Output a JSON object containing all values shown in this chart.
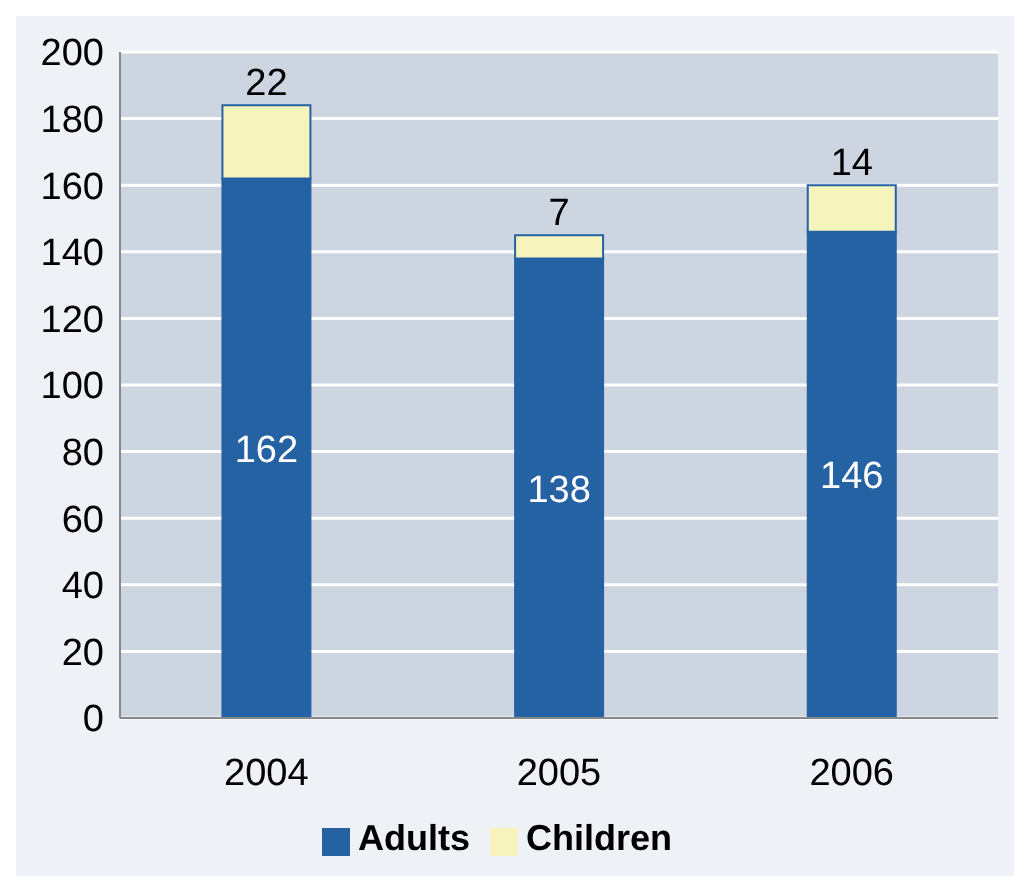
{
  "chart_data": {
    "type": "bar",
    "categories": [
      "2004",
      "2005",
      "2006"
    ],
    "stacked": true,
    "data_labels": true,
    "series": [
      {
        "name": "Adults",
        "color": "#2562a3",
        "values": [
          162,
          138,
          146
        ]
      },
      {
        "name": "Children",
        "color": "#f7f3bd",
        "values": [
          22,
          7,
          14
        ]
      }
    ],
    "ylim": [
      0,
      200
    ],
    "yticks": [
      0,
      20,
      40,
      60,
      80,
      100,
      120,
      140,
      160,
      180,
      200
    ],
    "grid": "y",
    "legend": "bottom"
  }
}
